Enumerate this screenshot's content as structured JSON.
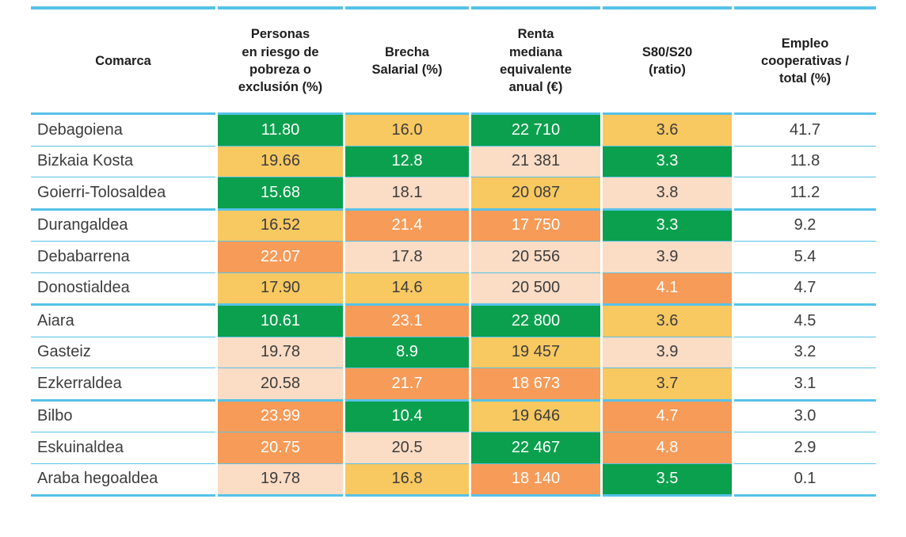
{
  "colors": {
    "green": "#0AA04D",
    "yellow": "#F8C861",
    "orange": "#F79B58",
    "peach": "#FBDCC5",
    "row_line": "#56C2E8",
    "header_text": "#1E1E1E",
    "body_text": "#3D3D3D",
    "value_text_light": "#FFFFFF"
  },
  "chart_data": {
    "type": "table",
    "columns": [
      {
        "label": "Comarca"
      },
      {
        "label": "Personas\nen riesgo de\npobreza o\nexclusión (%)"
      },
      {
        "label": "Brecha\nSalarial (%)"
      },
      {
        "label": "Renta\nmediana\nequivalente\nanual (€)"
      },
      {
        "label": "S80/S20\n(ratio)"
      },
      {
        "label": "Empleo\ncooperativas /\ntotal (%)"
      }
    ],
    "rows": [
      {
        "comarca": "Debagoiena",
        "values": [
          "11.80",
          "16.0",
          "22 710",
          "3.6",
          "41.7"
        ],
        "cell_colors": [
          "green",
          "yellow",
          "green",
          "yellow",
          "none"
        ]
      },
      {
        "comarca": "Bizkaia Kosta",
        "values": [
          "19.66",
          "12.8",
          "21 381",
          "3.3",
          "11.8"
        ],
        "cell_colors": [
          "yellow",
          "green",
          "peach",
          "green",
          "none"
        ]
      },
      {
        "comarca": "Goierri-Tolosaldea",
        "values": [
          "15.68",
          "18.1",
          "20 087",
          "3.8",
          "11.2"
        ],
        "cell_colors": [
          "green",
          "peach",
          "yellow",
          "peach",
          "none"
        ]
      },
      {
        "comarca": "Durangaldea",
        "values": [
          "16.52",
          "21.4",
          "17 750",
          "3.3",
          "9.2"
        ],
        "cell_colors": [
          "yellow",
          "orange",
          "orange",
          "green",
          "none"
        ]
      },
      {
        "comarca": "Debabarrena",
        "values": [
          "22.07",
          "17.8",
          "20 556",
          "3.9",
          "5.4"
        ],
        "cell_colors": [
          "orange",
          "peach",
          "peach",
          "peach",
          "none"
        ]
      },
      {
        "comarca": "Donostialdea",
        "values": [
          "17.90",
          "14.6",
          "20 500",
          "4.1",
          "4.7"
        ],
        "cell_colors": [
          "yellow",
          "yellow",
          "peach",
          "orange",
          "none"
        ]
      },
      {
        "comarca": "Aiara",
        "values": [
          "10.61",
          "23.1",
          "22 800",
          "3.6",
          "4.5"
        ],
        "cell_colors": [
          "green",
          "orange",
          "green",
          "yellow",
          "none"
        ]
      },
      {
        "comarca": "Gasteiz",
        "values": [
          "19.78",
          "8.9",
          "19 457",
          "3.9",
          "3.2"
        ],
        "cell_colors": [
          "peach",
          "green",
          "yellow",
          "peach",
          "none"
        ]
      },
      {
        "comarca": "Ezkerraldea",
        "values": [
          "20.58",
          "21.7",
          "18 673",
          "3.7",
          "3.1"
        ],
        "cell_colors": [
          "peach",
          "orange",
          "orange",
          "yellow",
          "none"
        ]
      },
      {
        "comarca": "Bilbo",
        "values": [
          "23.99",
          "10.4",
          "19 646",
          "4.7",
          "3.0"
        ],
        "cell_colors": [
          "orange",
          "green",
          "yellow",
          "orange",
          "none"
        ]
      },
      {
        "comarca": "Eskuinaldea",
        "values": [
          "20.75",
          "20.5",
          "22 467",
          "4.8",
          "2.9"
        ],
        "cell_colors": [
          "orange",
          "peach",
          "green",
          "orange",
          "none"
        ]
      },
      {
        "comarca": "Araba hegoaldea",
        "values": [
          "19.78",
          "16.8",
          "18 140",
          "3.5",
          "0.1"
        ],
        "cell_colors": [
          "peach",
          "yellow",
          "orange",
          "green",
          "none"
        ]
      }
    ]
  }
}
